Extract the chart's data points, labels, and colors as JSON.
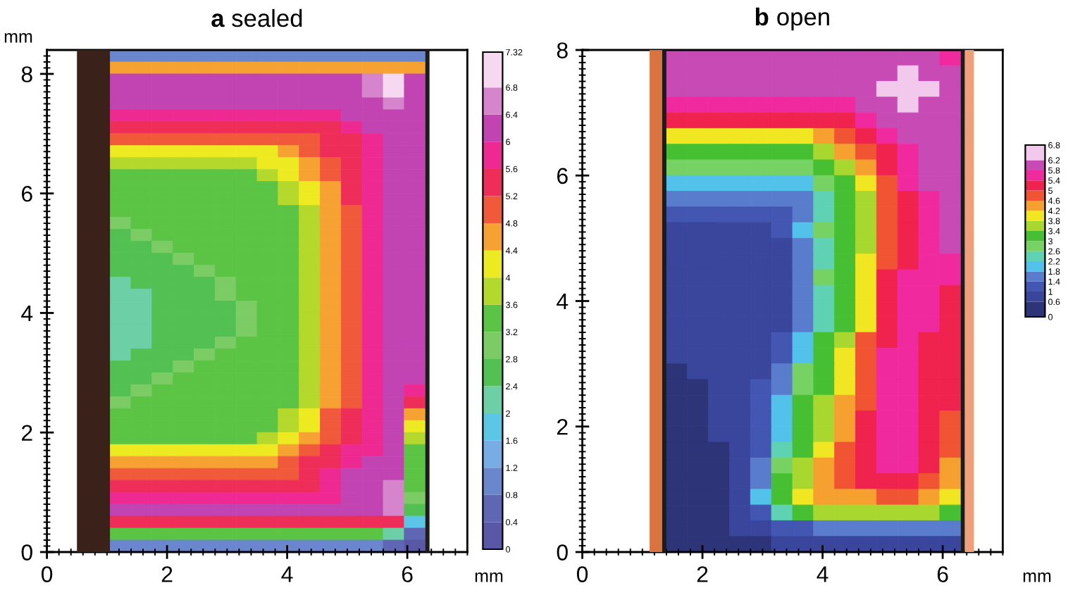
{
  "chart_data": [
    {
      "type": "heatmap",
      "title": "a sealed",
      "xlabel": "mm",
      "ylabel": "mm",
      "x": [
        1.225,
        1.575,
        1.925,
        2.275,
        2.625,
        2.975,
        3.325,
        3.675,
        4.025,
        4.375,
        4.725,
        5.075,
        5.425,
        5.775,
        6.125
      ],
      "y": [
        8.3,
        8.1,
        7.9,
        7.7,
        7.5,
        7.3,
        7.1,
        6.9,
        6.7,
        6.5,
        6.3,
        6.1,
        5.9,
        5.7,
        5.5,
        5.3,
        5.1,
        4.9,
        4.7,
        4.5,
        4.3,
        4.1,
        3.9,
        3.7,
        3.5,
        3.3,
        3.1,
        2.9,
        2.7,
        2.5,
        2.3,
        2.1,
        1.9,
        1.7,
        1.5,
        1.3,
        1.1,
        0.9,
        0.7,
        0.5,
        0.3,
        0.1
      ],
      "cells": [
        [
          1.0,
          1.0,
          1.0,
          1.0,
          1.0,
          1.0,
          1.0,
          1.0,
          1.0,
          1.0,
          1.0,
          1.0,
          1.0,
          1.0,
          1.0
        ],
        [
          4.6,
          4.6,
          4.6,
          4.6,
          4.6,
          4.6,
          4.6,
          4.6,
          4.6,
          4.6,
          4.6,
          4.6,
          4.6,
          4.6,
          4.6
        ],
        [
          6.2,
          6.2,
          6.2,
          6.2,
          6.2,
          6.2,
          6.2,
          6.2,
          6.2,
          6.2,
          6.2,
          6.2,
          6.6,
          7.0,
          6.2
        ],
        [
          6.2,
          6.2,
          6.2,
          6.2,
          6.2,
          6.2,
          6.2,
          6.2,
          6.2,
          6.2,
          6.2,
          6.2,
          6.6,
          7.0,
          6.2
        ],
        [
          6.2,
          6.2,
          6.2,
          6.2,
          6.2,
          6.2,
          6.2,
          6.2,
          6.2,
          6.2,
          6.2,
          6.2,
          6.2,
          6.6,
          6.2
        ],
        [
          5.8,
          5.8,
          5.8,
          5.8,
          5.8,
          5.8,
          5.8,
          5.8,
          5.8,
          5.8,
          5.8,
          6.2,
          6.2,
          6.2,
          6.2
        ],
        [
          5.4,
          5.4,
          5.4,
          5.4,
          5.4,
          5.4,
          5.4,
          5.4,
          5.4,
          5.4,
          5.4,
          5.8,
          6.2,
          6.2,
          6.2
        ],
        [
          5.0,
          5.0,
          5.0,
          5.0,
          5.0,
          5.0,
          5.0,
          5.0,
          5.0,
          5.0,
          5.4,
          5.4,
          5.8,
          6.2,
          6.2
        ],
        [
          4.2,
          4.2,
          4.2,
          4.2,
          4.2,
          4.2,
          4.2,
          4.2,
          4.6,
          5.0,
          5.4,
          5.4,
          5.8,
          6.2,
          6.2
        ],
        [
          3.8,
          3.8,
          3.8,
          3.8,
          3.8,
          3.8,
          3.8,
          4.2,
          4.2,
          4.6,
          5.0,
          5.4,
          5.8,
          6.2,
          6.2
        ],
        [
          3.4,
          3.4,
          3.4,
          3.4,
          3.4,
          3.4,
          3.4,
          3.8,
          4.2,
          4.6,
          5.0,
          5.4,
          5.8,
          6.2,
          6.2
        ],
        [
          3.4,
          3.4,
          3.4,
          3.4,
          3.4,
          3.4,
          3.4,
          3.4,
          3.8,
          4.2,
          4.6,
          5.4,
          5.8,
          6.2,
          6.2
        ],
        [
          3.4,
          3.4,
          3.4,
          3.4,
          3.4,
          3.4,
          3.4,
          3.4,
          3.8,
          4.2,
          4.6,
          5.4,
          5.8,
          6.2,
          6.2
        ],
        [
          3.4,
          3.4,
          3.4,
          3.4,
          3.4,
          3.4,
          3.4,
          3.4,
          3.4,
          3.8,
          4.6,
          5.0,
          5.8,
          6.2,
          6.2
        ],
        [
          3.0,
          3.4,
          3.4,
          3.4,
          3.4,
          3.4,
          3.4,
          3.4,
          3.4,
          3.8,
          4.6,
          5.0,
          5.8,
          6.2,
          6.2
        ],
        [
          2.6,
          3.0,
          3.4,
          3.4,
          3.4,
          3.4,
          3.4,
          3.4,
          3.4,
          3.8,
          4.6,
          5.0,
          5.8,
          6.2,
          6.2
        ],
        [
          2.6,
          2.6,
          3.0,
          3.4,
          3.4,
          3.4,
          3.4,
          3.4,
          3.4,
          3.8,
          4.6,
          5.0,
          5.8,
          6.2,
          6.2
        ],
        [
          2.6,
          2.6,
          2.6,
          3.0,
          3.4,
          3.4,
          3.4,
          3.4,
          3.4,
          3.8,
          4.6,
          5.0,
          5.8,
          6.2,
          6.2
        ],
        [
          2.6,
          2.6,
          2.6,
          2.6,
          3.0,
          3.4,
          3.4,
          3.4,
          3.4,
          3.8,
          4.6,
          5.0,
          5.8,
          6.2,
          6.2
        ],
        [
          2.2,
          2.6,
          2.6,
          2.6,
          2.6,
          3.0,
          3.4,
          3.4,
          3.4,
          3.8,
          4.6,
          5.0,
          5.8,
          6.2,
          6.2
        ],
        [
          2.2,
          2.2,
          2.6,
          2.6,
          2.6,
          3.0,
          3.4,
          3.4,
          3.4,
          3.8,
          4.6,
          5.0,
          5.8,
          6.2,
          6.2
        ],
        [
          2.2,
          2.2,
          2.6,
          2.6,
          2.6,
          2.6,
          3.0,
          3.4,
          3.4,
          3.8,
          4.6,
          5.0,
          5.8,
          6.2,
          6.2
        ],
        [
          2.2,
          2.2,
          2.6,
          2.6,
          2.6,
          2.6,
          3.0,
          3.4,
          3.4,
          3.8,
          4.6,
          5.0,
          5.8,
          6.2,
          6.2
        ],
        [
          2.2,
          2.2,
          2.6,
          2.6,
          2.6,
          2.6,
          3.0,
          3.4,
          3.4,
          3.8,
          4.6,
          5.0,
          5.8,
          6.2,
          6.2
        ],
        [
          2.2,
          2.2,
          2.6,
          2.6,
          2.6,
          3.0,
          3.4,
          3.4,
          3.4,
          3.8,
          4.6,
          5.0,
          5.8,
          6.2,
          6.2
        ],
        [
          2.2,
          2.6,
          2.6,
          2.6,
          3.0,
          3.4,
          3.4,
          3.4,
          3.4,
          3.8,
          4.6,
          5.0,
          5.8,
          6.2,
          6.2
        ],
        [
          2.6,
          2.6,
          2.6,
          3.0,
          3.4,
          3.4,
          3.4,
          3.4,
          3.4,
          3.8,
          4.6,
          5.0,
          5.8,
          6.2,
          6.2
        ],
        [
          2.6,
          2.6,
          3.0,
          3.4,
          3.4,
          3.4,
          3.4,
          3.4,
          3.4,
          3.8,
          4.6,
          5.0,
          5.8,
          6.2,
          6.2
        ],
        [
          2.6,
          3.0,
          3.4,
          3.4,
          3.4,
          3.4,
          3.4,
          3.4,
          3.4,
          3.8,
          4.6,
          5.0,
          5.8,
          6.2,
          5.8
        ],
        [
          3.0,
          3.4,
          3.4,
          3.4,
          3.4,
          3.4,
          3.4,
          3.4,
          3.4,
          3.8,
          4.6,
          5.0,
          5.8,
          6.2,
          5.4
        ],
        [
          3.4,
          3.4,
          3.4,
          3.4,
          3.4,
          3.4,
          3.4,
          3.4,
          3.8,
          4.2,
          5.0,
          5.4,
          5.8,
          6.2,
          4.6
        ],
        [
          3.4,
          3.4,
          3.4,
          3.4,
          3.4,
          3.4,
          3.4,
          3.4,
          3.8,
          4.2,
          5.0,
          5.4,
          5.8,
          6.2,
          4.2
        ],
        [
          3.4,
          3.4,
          3.4,
          3.4,
          3.4,
          3.4,
          3.4,
          3.8,
          4.2,
          4.6,
          5.0,
          5.4,
          5.8,
          6.2,
          3.8
        ],
        [
          4.2,
          4.2,
          4.2,
          4.2,
          4.2,
          4.2,
          4.2,
          4.2,
          4.6,
          5.0,
          5.4,
          5.8,
          5.8,
          6.2,
          3.4
        ],
        [
          4.6,
          4.6,
          4.6,
          4.6,
          4.6,
          4.6,
          4.6,
          4.6,
          5.0,
          5.4,
          5.4,
          5.8,
          6.2,
          6.2,
          3.4
        ],
        [
          5.0,
          5.0,
          5.0,
          5.0,
          5.0,
          5.0,
          5.0,
          5.0,
          5.0,
          5.4,
          5.8,
          6.2,
          6.2,
          6.2,
          3.4
        ],
        [
          5.4,
          5.4,
          5.4,
          5.4,
          5.4,
          5.4,
          5.4,
          5.4,
          5.4,
          5.4,
          5.8,
          6.2,
          6.2,
          6.6,
          3.4
        ],
        [
          5.8,
          5.8,
          5.8,
          5.8,
          5.8,
          5.8,
          5.8,
          5.8,
          5.8,
          5.8,
          5.8,
          6.2,
          6.2,
          6.6,
          3.0
        ],
        [
          6.2,
          6.2,
          6.2,
          6.2,
          6.2,
          6.2,
          6.2,
          6.2,
          6.2,
          6.2,
          6.2,
          6.2,
          6.2,
          6.6,
          2.6
        ],
        [
          5.4,
          5.4,
          5.4,
          5.4,
          5.4,
          5.4,
          5.4,
          5.4,
          5.4,
          5.4,
          5.4,
          5.4,
          5.4,
          5.4,
          1.8
        ],
        [
          3.4,
          3.4,
          3.4,
          3.4,
          3.4,
          3.4,
          3.4,
          3.4,
          3.4,
          3.4,
          3.4,
          3.4,
          3.4,
          2.2,
          0.6
        ],
        [
          1.0,
          1.0,
          1.0,
          1.0,
          1.0,
          1.0,
          1.0,
          1.0,
          1.0,
          1.0,
          1.0,
          1.0,
          1.0,
          0.6,
          0.2
        ]
      ],
      "clim": [
        0,
        7.32
      ],
      "cticks": [
        0,
        0.4,
        0.8,
        1.2,
        1.6,
        2,
        2.4,
        2.8,
        3.2,
        3.6,
        4,
        4.4,
        4.8,
        5.2,
        5.6,
        6,
        6.4,
        6.8,
        7.32
      ],
      "colors": [
        "#5a58a6",
        "#5f66b4",
        "#6a86cc",
        "#78ace4",
        "#5cc6e6",
        "#6ccfa6",
        "#52c052",
        "#7ccc66",
        "#5cc444",
        "#b4d82c",
        "#eeea22",
        "#f6a232",
        "#f05a3a",
        "#ee2e58",
        "#ee2a92",
        "#c244b2",
        "#d684cc",
        "#f6d8f0"
      ],
      "xlim": [
        0,
        7
      ],
      "ylim": [
        0,
        8.4
      ],
      "xticks": [
        0,
        {
          "value": 0.2,
          "label": null
        },
        {
          "value": 0.4,
          "label": null
        },
        {
          "value": 0.6,
          "label": null
        },
        {
          "value": 0.8,
          "label": null
        },
        {
          "value": 1,
          "label": null
        },
        {
          "value": 1.2,
          "label": null
        },
        {
          "value": 1.4,
          "label": null
        },
        {
          "value": 1.6,
          "label": null
        },
        {
          "value": 1.8,
          "label": null
        },
        2,
        {
          "value": 2.2,
          "label": null
        },
        {
          "value": 2.4,
          "label": null
        },
        {
          "value": 2.6,
          "label": null
        },
        {
          "value": 2.8,
          "label": null
        },
        {
          "value": 3,
          "label": null
        },
        {
          "value": 3.2,
          "label": null
        },
        {
          "value": 3.4,
          "label": null
        },
        {
          "value": 3.6,
          "label": null
        },
        {
          "value": 3.8,
          "label": null
        },
        4,
        {
          "value": 4.2,
          "label": null
        },
        {
          "value": 4.4,
          "label": null
        },
        {
          "value": 4.6,
          "label": null
        },
        {
          "value": 4.8,
          "label": null
        },
        {
          "value": 5,
          "label": null
        },
        {
          "value": 5.2,
          "label": null
        },
        {
          "value": 5.4,
          "label": null
        },
        {
          "value": 5.6,
          "label": null
        },
        {
          "value": 5.8,
          "label": null
        },
        6,
        {
          "value": 6.2,
          "label": null
        },
        {
          "value": 6.4,
          "label": null
        },
        {
          "value": 6.6,
          "label": null
        },
        {
          "value": 6.8,
          "label": null
        },
        {
          "value": 7,
          "label": null
        }
      ],
      "yticks": [
        0,
        {
          "value": 0.1,
          "label": null
        },
        {
          "value": 0.2,
          "label": null
        },
        {
          "value": 0.3,
          "label": null
        },
        {
          "value": 0.4,
          "label": null
        },
        {
          "value": 0.5,
          "label": null
        },
        {
          "value": 0.6,
          "label": null
        },
        {
          "value": 0.7,
          "label": null
        },
        {
          "value": 0.8,
          "label": null
        },
        {
          "value": 0.9,
          "label": null
        },
        {
          "value": 1,
          "label": null
        },
        {
          "value": 1.1,
          "label": null
        },
        {
          "value": 1.2,
          "label": null
        },
        {
          "value": 1.3,
          "label": null
        },
        {
          "value": 1.4,
          "label": null
        },
        {
          "value": 1.5,
          "label": null
        },
        {
          "value": 1.6,
          "label": null
        },
        {
          "value": 1.7,
          "label": null
        },
        {
          "value": 1.8,
          "label": null
        },
        {
          "value": 1.9,
          "label": null
        },
        2,
        {
          "value": 2.1,
          "label": null
        },
        {
          "value": 2.2,
          "label": null
        },
        {
          "value": 2.3,
          "label": null
        },
        {
          "value": 2.4,
          "label": null
        },
        {
          "value": 2.5,
          "label": null
        },
        {
          "value": 2.6,
          "label": null
        },
        {
          "value": 2.7,
          "label": null
        },
        {
          "value": 2.8,
          "label": null
        },
        {
          "value": 2.9,
          "label": null
        },
        {
          "value": 3,
          "label": null
        },
        {
          "value": 3.1,
          "label": null
        },
        {
          "value": 3.2,
          "label": null
        },
        {
          "value": 3.3,
          "label": null
        },
        {
          "value": 3.4,
          "label": null
        },
        {
          "value": 3.5,
          "label": null
        },
        {
          "value": 3.6,
          "label": null
        },
        {
          "value": 3.7,
          "label": null
        },
        {
          "value": 3.8,
          "label": null
        },
        {
          "value": 3.9,
          "label": null
        },
        4,
        {
          "value": 4.1,
          "label": null
        },
        {
          "value": 4.2,
          "label": null
        },
        {
          "value": 4.3,
          "label": null
        },
        {
          "value": 4.4,
          "label": null
        },
        {
          "value": 4.5,
          "label": null
        },
        {
          "value": 4.6,
          "label": null
        },
        {
          "value": 4.7,
          "label": null
        },
        {
          "value": 4.8,
          "label": null
        },
        {
          "value": 4.9,
          "label": null
        },
        {
          "value": 5,
          "label": null
        },
        {
          "value": 5.1,
          "label": null
        },
        {
          "value": 5.2,
          "label": null
        },
        {
          "value": 5.3,
          "label": null
        },
        {
          "value": 5.4,
          "label": null
        },
        {
          "value": 5.5,
          "label": null
        },
        {
          "value": 5.6,
          "label": null
        },
        {
          "value": 5.7,
          "label": null
        },
        {
          "value": 5.8,
          "label": null
        },
        {
          "value": 5.9,
          "label": null
        },
        6,
        {
          "value": 6.1,
          "label": null
        },
        {
          "value": 6.2,
          "label": null
        },
        {
          "value": 6.3,
          "label": null
        },
        {
          "value": 6.4,
          "label": null
        },
        {
          "value": 6.5,
          "label": null
        },
        {
          "value": 6.6,
          "label": null
        },
        {
          "value": 6.7,
          "label": null
        },
        {
          "value": 6.8,
          "label": null
        },
        {
          "value": 6.9,
          "label": null
        },
        {
          "value": 7,
          "label": null
        },
        {
          "value": 7.1,
          "label": null
        },
        {
          "value": 7.2,
          "label": null
        },
        {
          "value": 7.3,
          "label": null
        },
        {
          "value": 7.4,
          "label": null
        },
        {
          "value": 7.5,
          "label": null
        },
        {
          "value": 7.6,
          "label": null
        },
        {
          "value": 7.7,
          "label": null
        },
        {
          "value": 7.8,
          "label": null
        },
        {
          "value": 7.9,
          "label": null
        },
        8,
        {
          "value": 8.1,
          "label": null
        },
        {
          "value": 8.2,
          "label": null
        },
        {
          "value": 8.3,
          "label": null
        }
      ]
    },
    {
      "type": "heatmap",
      "title": "b open",
      "xlabel": "mm",
      "x": [
        1.575,
        1.925,
        2.275,
        2.625,
        2.975,
        3.325,
        3.675,
        4.025,
        4.375,
        4.725,
        5.075,
        5.425,
        5.775,
        6.125
      ],
      "y": [
        7.875,
        7.625,
        7.375,
        7.125,
        6.875,
        6.625,
        6.375,
        6.125,
        5.875,
        5.625,
        5.375,
        5.125,
        4.875,
        4.625,
        4.375,
        4.125,
        3.875,
        3.625,
        3.375,
        3.125,
        2.875,
        2.625,
        2.375,
        2.125,
        1.875,
        1.625,
        1.375,
        1.125,
        0.875,
        0.625,
        0.375,
        0.125
      ],
      "cells": [
        [
          6.0,
          6.0,
          6.0,
          6.0,
          6.0,
          6.0,
          6.0,
          6.0,
          6.0,
          6.0,
          6.0,
          6.0,
          6.0,
          5.6
        ],
        [
          6.0,
          6.0,
          6.0,
          6.0,
          6.0,
          6.0,
          6.0,
          6.0,
          6.0,
          6.0,
          6.0,
          6.5,
          6.0,
          6.0
        ],
        [
          6.0,
          6.0,
          6.0,
          6.0,
          6.0,
          6.0,
          6.0,
          6.0,
          6.0,
          6.0,
          6.5,
          6.5,
          6.5,
          6.0
        ],
        [
          5.6,
          5.6,
          5.6,
          5.6,
          5.6,
          5.6,
          5.6,
          5.6,
          5.6,
          6.0,
          6.0,
          6.5,
          6.0,
          6.0
        ],
        [
          5.2,
          5.2,
          5.2,
          5.2,
          5.2,
          5.2,
          5.2,
          5.2,
          5.2,
          5.6,
          6.0,
          6.0,
          6.0,
          6.0
        ],
        [
          4.0,
          4.0,
          4.0,
          4.0,
          4.0,
          4.0,
          4.0,
          4.4,
          4.8,
          5.2,
          5.6,
          6.0,
          6.0,
          6.0
        ],
        [
          3.2,
          3.2,
          3.2,
          3.2,
          3.2,
          3.2,
          3.2,
          3.6,
          4.4,
          4.8,
          5.2,
          5.6,
          6.0,
          6.0
        ],
        [
          2.8,
          2.8,
          2.8,
          2.8,
          2.8,
          2.8,
          2.8,
          3.2,
          3.6,
          4.4,
          5.2,
          5.6,
          6.0,
          6.0
        ],
        [
          2.0,
          2.0,
          2.0,
          2.0,
          2.0,
          2.0,
          2.0,
          2.8,
          3.2,
          4.0,
          4.8,
          5.6,
          6.0,
          6.0
        ],
        [
          1.6,
          1.6,
          1.6,
          1.6,
          1.6,
          1.6,
          1.6,
          2.4,
          3.2,
          3.6,
          4.8,
          5.2,
          5.6,
          6.0
        ],
        [
          1.2,
          1.2,
          1.2,
          1.2,
          1.2,
          1.2,
          1.6,
          2.4,
          3.2,
          3.6,
          4.8,
          5.2,
          5.6,
          6.0
        ],
        [
          0.8,
          0.8,
          0.8,
          0.8,
          0.8,
          1.2,
          2.0,
          2.8,
          3.2,
          3.6,
          4.8,
          5.2,
          5.6,
          6.0
        ],
        [
          0.8,
          0.8,
          0.8,
          0.8,
          0.8,
          0.8,
          1.6,
          2.4,
          3.2,
          3.6,
          4.8,
          5.2,
          5.6,
          6.0
        ],
        [
          0.8,
          0.8,
          0.8,
          0.8,
          0.8,
          0.8,
          1.6,
          2.4,
          3.2,
          4.0,
          4.8,
          5.2,
          5.6,
          5.6
        ],
        [
          0.8,
          0.8,
          0.8,
          0.8,
          0.8,
          0.8,
          1.6,
          2.8,
          3.2,
          4.0,
          5.2,
          5.6,
          5.6,
          5.6
        ],
        [
          0.8,
          0.8,
          0.8,
          0.8,
          0.8,
          0.8,
          1.6,
          2.4,
          3.2,
          4.0,
          5.2,
          5.6,
          5.6,
          5.2
        ],
        [
          0.8,
          0.8,
          0.8,
          0.8,
          0.8,
          0.8,
          1.6,
          2.4,
          3.2,
          4.0,
          5.2,
          5.6,
          5.6,
          5.2
        ],
        [
          0.8,
          0.8,
          0.8,
          0.8,
          0.8,
          0.8,
          1.6,
          2.4,
          3.2,
          4.0,
          5.2,
          5.6,
          5.6,
          5.2
        ],
        [
          0.8,
          0.8,
          0.8,
          0.8,
          0.8,
          1.2,
          2.0,
          3.2,
          3.6,
          4.8,
          5.2,
          5.6,
          5.2,
          5.2
        ],
        [
          0.8,
          0.8,
          0.8,
          0.8,
          0.8,
          1.2,
          2.0,
          3.2,
          4.0,
          4.8,
          5.6,
          5.6,
          5.2,
          5.2
        ],
        [
          0.3,
          0.8,
          0.8,
          0.8,
          0.8,
          1.6,
          2.8,
          3.2,
          4.0,
          4.8,
          5.6,
          5.6,
          5.2,
          5.2
        ],
        [
          0.3,
          0.3,
          0.8,
          0.8,
          1.2,
          1.6,
          2.8,
          3.2,
          4.0,
          4.8,
          5.6,
          5.6,
          5.2,
          5.2
        ],
        [
          0.3,
          0.3,
          0.8,
          0.8,
          1.2,
          2.0,
          3.2,
          3.6,
          4.4,
          4.8,
          5.6,
          5.6,
          5.2,
          5.2
        ],
        [
          0.3,
          0.3,
          0.8,
          0.8,
          1.2,
          2.0,
          3.2,
          3.6,
          4.4,
          5.2,
          5.6,
          5.6,
          5.2,
          4.8
        ],
        [
          0.3,
          0.3,
          0.8,
          0.8,
          1.2,
          2.0,
          3.2,
          3.6,
          4.4,
          5.2,
          5.6,
          5.6,
          5.2,
          4.8
        ],
        [
          0.3,
          0.3,
          0.3,
          0.8,
          1.2,
          2.4,
          3.2,
          4.0,
          4.8,
          5.2,
          5.6,
          5.6,
          5.2,
          4.8
        ],
        [
          0.3,
          0.3,
          0.3,
          0.8,
          1.6,
          2.8,
          3.6,
          4.4,
          4.8,
          5.2,
          5.6,
          5.6,
          5.2,
          4.4
        ],
        [
          0.3,
          0.3,
          0.3,
          0.8,
          1.6,
          3.2,
          3.6,
          4.4,
          4.8,
          5.2,
          5.2,
          5.2,
          4.8,
          4.4
        ],
        [
          0.3,
          0.3,
          0.3,
          0.8,
          2.0,
          3.2,
          4.0,
          4.4,
          4.4,
          4.4,
          4.8,
          4.8,
          4.4,
          4.0
        ],
        [
          0.3,
          0.3,
          0.3,
          0.8,
          1.2,
          2.4,
          3.2,
          3.6,
          3.6,
          3.6,
          3.6,
          3.6,
          3.6,
          3.2
        ],
        [
          0.3,
          0.3,
          0.3,
          0.8,
          0.8,
          1.2,
          1.2,
          1.6,
          1.6,
          1.6,
          1.6,
          1.6,
          1.6,
          1.6
        ],
        [
          0.3,
          0.3,
          0.3,
          0.3,
          0.3,
          0.8,
          0.8,
          0.8,
          0.8,
          0.8,
          0.8,
          0.8,
          0.8,
          0.8
        ]
      ],
      "clim": [
        0,
        6.8
      ],
      "cticks": [
        0,
        0.6,
        1,
        1.4,
        1.8,
        2.2,
        2.6,
        3,
        3.4,
        3.8,
        4.2,
        4.6,
        5,
        5.4,
        5.8,
        6.2,
        6.8
      ],
      "colors": [
        "#2d3478",
        "#39469c",
        "#4256b2",
        "#5a7ccc",
        "#52c2ea",
        "#5ed2b2",
        "#76d262",
        "#46c032",
        "#a8d830",
        "#f0e622",
        "#f6a030",
        "#f05432",
        "#f0224e",
        "#f02a9e",
        "#c84ab4",
        "#f2c8ec"
      ],
      "xlim": [
        0,
        7
      ],
      "ylim": [
        0,
        8
      ],
      "xticks": [
        0,
        {
          "value": 0.2,
          "label": null
        },
        {
          "value": 0.4,
          "label": null
        },
        {
          "value": 0.6,
          "label": null
        },
        {
          "value": 0.8,
          "label": null
        },
        {
          "value": 1,
          "label": null
        },
        {
          "value": 1.2,
          "label": null
        },
        {
          "value": 1.4,
          "label": null
        },
        {
          "value": 1.6,
          "label": null
        },
        {
          "value": 1.8,
          "label": null
        },
        2,
        {
          "value": 2.2,
          "label": null
        },
        {
          "value": 2.4,
          "label": null
        },
        {
          "value": 2.6,
          "label": null
        },
        {
          "value": 2.8,
          "label": null
        },
        {
          "value": 3,
          "label": null
        },
        {
          "value": 3.2,
          "label": null
        },
        {
          "value": 3.4,
          "label": null
        },
        {
          "value": 3.6,
          "label": null
        },
        {
          "value": 3.8,
          "label": null
        },
        4,
        {
          "value": 4.2,
          "label": null
        },
        {
          "value": 4.4,
          "label": null
        },
        {
          "value": 4.6,
          "label": null
        },
        {
          "value": 4.8,
          "label": null
        },
        {
          "value": 5,
          "label": null
        },
        {
          "value": 5.2,
          "label": null
        },
        {
          "value": 5.4,
          "label": null
        },
        {
          "value": 5.6,
          "label": null
        },
        {
          "value": 5.8,
          "label": null
        },
        6,
        {
          "value": 6.2,
          "label": null
        },
        {
          "value": 6.4,
          "label": null
        },
        {
          "value": 6.6,
          "label": null
        },
        {
          "value": 6.8,
          "label": null
        },
        {
          "value": 7,
          "label": null
        }
      ],
      "yticks": [
        0,
        {
          "value": 0.1,
          "label": null
        },
        {
          "value": 0.2,
          "label": null
        },
        {
          "value": 0.3,
          "label": null
        },
        {
          "value": 0.4,
          "label": null
        },
        {
          "value": 0.5,
          "label": null
        },
        {
          "value": 0.6,
          "label": null
        },
        {
          "value": 0.7,
          "label": null
        },
        {
          "value": 0.8,
          "label": null
        },
        {
          "value": 0.9,
          "label": null
        },
        {
          "value": 1,
          "label": null
        },
        {
          "value": 1.1,
          "label": null
        },
        {
          "value": 1.2,
          "label": null
        },
        {
          "value": 1.3,
          "label": null
        },
        {
          "value": 1.4,
          "label": null
        },
        {
          "value": 1.5,
          "label": null
        },
        {
          "value": 1.6,
          "label": null
        },
        {
          "value": 1.7,
          "label": null
        },
        {
          "value": 1.8,
          "label": null
        },
        {
          "value": 1.9,
          "label": null
        },
        2,
        {
          "value": 2.1,
          "label": null
        },
        {
          "value": 2.2,
          "label": null
        },
        {
          "value": 2.3,
          "label": null
        },
        {
          "value": 2.4,
          "label": null
        },
        {
          "value": 2.5,
          "label": null
        },
        {
          "value": 2.6,
          "label": null
        },
        {
          "value": 2.7,
          "label": null
        },
        {
          "value": 2.8,
          "label": null
        },
        {
          "value": 2.9,
          "label": null
        },
        {
          "value": 3,
          "label": null
        },
        {
          "value": 3.1,
          "label": null
        },
        {
          "value": 3.2,
          "label": null
        },
        {
          "value": 3.3,
          "label": null
        },
        {
          "value": 3.4,
          "label": null
        },
        {
          "value": 3.5,
          "label": null
        },
        {
          "value": 3.6,
          "label": null
        },
        {
          "value": 3.7,
          "label": null
        },
        {
          "value": 3.8,
          "label": null
        },
        {
          "value": 3.9,
          "label": null
        },
        4,
        {
          "value": 4.1,
          "label": null
        },
        {
          "value": 4.2,
          "label": null
        },
        {
          "value": 4.3,
          "label": null
        },
        {
          "value": 4.4,
          "label": null
        },
        {
          "value": 4.5,
          "label": null
        },
        {
          "value": 4.6,
          "label": null
        },
        {
          "value": 4.7,
          "label": null
        },
        {
          "value": 4.8,
          "label": null
        },
        {
          "value": 4.9,
          "label": null
        },
        {
          "value": 5,
          "label": null
        },
        {
          "value": 5.1,
          "label": null
        },
        {
          "value": 5.2,
          "label": null
        },
        {
          "value": 5.3,
          "label": null
        },
        {
          "value": 5.4,
          "label": null
        },
        {
          "value": 5.5,
          "label": null
        },
        {
          "value": 5.6,
          "label": null
        },
        {
          "value": 5.7,
          "label": null
        },
        {
          "value": 5.8,
          "label": null
        },
        {
          "value": 5.9,
          "label": null
        },
        6,
        {
          "value": 6.1,
          "label": null
        },
        {
          "value": 6.2,
          "label": null
        },
        {
          "value": 6.3,
          "label": null
        },
        {
          "value": 6.4,
          "label": null
        },
        {
          "value": 6.5,
          "label": null
        },
        {
          "value": 6.6,
          "label": null
        },
        {
          "value": 6.7,
          "label": null
        },
        {
          "value": 6.8,
          "label": null
        },
        {
          "value": 6.9,
          "label": null
        },
        {
          "value": 7,
          "label": null
        },
        {
          "value": 7.1,
          "label": null
        },
        {
          "value": 7.2,
          "label": null
        },
        {
          "value": 7.3,
          "label": null
        },
        {
          "value": 7.4,
          "label": null
        },
        {
          "value": 7.5,
          "label": null
        },
        {
          "value": 7.6,
          "label": null
        },
        {
          "value": 7.7,
          "label": null
        },
        {
          "value": 7.8,
          "label": null
        },
        {
          "value": 7.9,
          "label": null
        },
        8
      ]
    }
  ]
}
